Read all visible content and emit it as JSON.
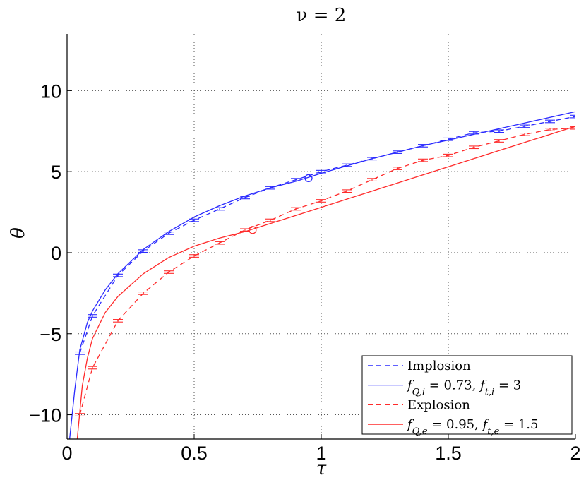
{
  "chart_data": {
    "type": "line",
    "title": "ν = 2",
    "xlabel": "τ",
    "ylabel": "θ",
    "xlim": [
      0,
      2
    ],
    "ylim": [
      -11.5,
      13.5
    ],
    "x_ticks": [
      0,
      0.5,
      1,
      1.5,
      2
    ],
    "x_tick_labels": [
      "0",
      "0.5",
      "1",
      "1.5",
      "2"
    ],
    "y_ticks": [
      -10,
      -5,
      0,
      5,
      10
    ],
    "y_tick_labels": [
      "−10",
      "−5",
      "0",
      "5",
      "10"
    ],
    "grid": true,
    "legend_position": "bottom-right",
    "series": [
      {
        "name": "Implosion",
        "style": "dashed",
        "color": "#2b2bff",
        "error_bars": true,
        "x": [
          0.05,
          0.1,
          0.2,
          0.3,
          0.4,
          0.5,
          0.6,
          0.7,
          0.8,
          0.9,
          1.0,
          1.1,
          1.2,
          1.3,
          1.4,
          1.5,
          1.6,
          1.7,
          1.8,
          1.9,
          2.0
        ],
        "y": [
          -6.2,
          -3.9,
          -1.4,
          0.1,
          1.2,
          2.0,
          2.7,
          3.4,
          4.0,
          4.5,
          5.0,
          5.4,
          5.8,
          6.2,
          6.6,
          7.0,
          7.4,
          7.5,
          7.8,
          8.1,
          8.4
        ]
      },
      {
        "name": "f_{Q,i} = 0.73,  f_{t,i} = 3",
        "style": "solid",
        "color": "#2b2bff",
        "x": [
          0.01,
          0.03,
          0.05,
          0.08,
          0.1,
          0.15,
          0.2,
          0.3,
          0.4,
          0.5,
          0.6,
          0.7,
          0.8,
          0.9,
          1.0,
          1.2,
          1.4,
          1.6,
          1.8,
          2.0
        ],
        "y": [
          -11.5,
          -8.5,
          -6.0,
          -4.3,
          -3.6,
          -2.3,
          -1.3,
          0.2,
          1.3,
          2.2,
          2.9,
          3.5,
          4.0,
          4.4,
          4.9,
          5.8,
          6.6,
          7.3,
          8.0,
          8.7
        ]
      },
      {
        "name": "Explosion",
        "style": "dashed",
        "color": "#ff2b2b",
        "error_bars": true,
        "x": [
          0.05,
          0.1,
          0.2,
          0.3,
          0.4,
          0.5,
          0.6,
          0.7,
          0.8,
          0.9,
          1.0,
          1.1,
          1.2,
          1.3,
          1.4,
          1.5,
          1.6,
          1.7,
          1.8,
          1.9,
          2.0
        ],
        "y": [
          -10.0,
          -7.1,
          -4.2,
          -2.5,
          -1.2,
          -0.2,
          0.6,
          1.4,
          2.0,
          2.7,
          3.2,
          3.8,
          4.5,
          5.2,
          5.7,
          6.0,
          6.5,
          6.9,
          7.3,
          7.6,
          7.7
        ]
      },
      {
        "name": "f_{Q,e} = 0.95,  f_{t,e} = 1.5",
        "style": "solid",
        "color": "#ff2b2b",
        "x": [
          0.04,
          0.06,
          0.08,
          0.1,
          0.15,
          0.2,
          0.3,
          0.4,
          0.5,
          0.6,
          0.7,
          0.8,
          0.9,
          1.0,
          1.2,
          1.4,
          1.6,
          1.8,
          2.0
        ],
        "y": [
          -11.5,
          -8.2,
          -6.5,
          -5.3,
          -3.7,
          -2.7,
          -1.3,
          -0.3,
          0.4,
          0.9,
          1.3,
          1.8,
          2.3,
          2.8,
          3.8,
          4.8,
          5.8,
          6.8,
          7.8
        ]
      }
    ],
    "markers": [
      {
        "series": "Implosion",
        "shape": "circle",
        "x": 0.95,
        "y": 4.6
      },
      {
        "series": "Explosion",
        "shape": "circle",
        "x": 0.73,
        "y": 1.4
      }
    ]
  }
}
